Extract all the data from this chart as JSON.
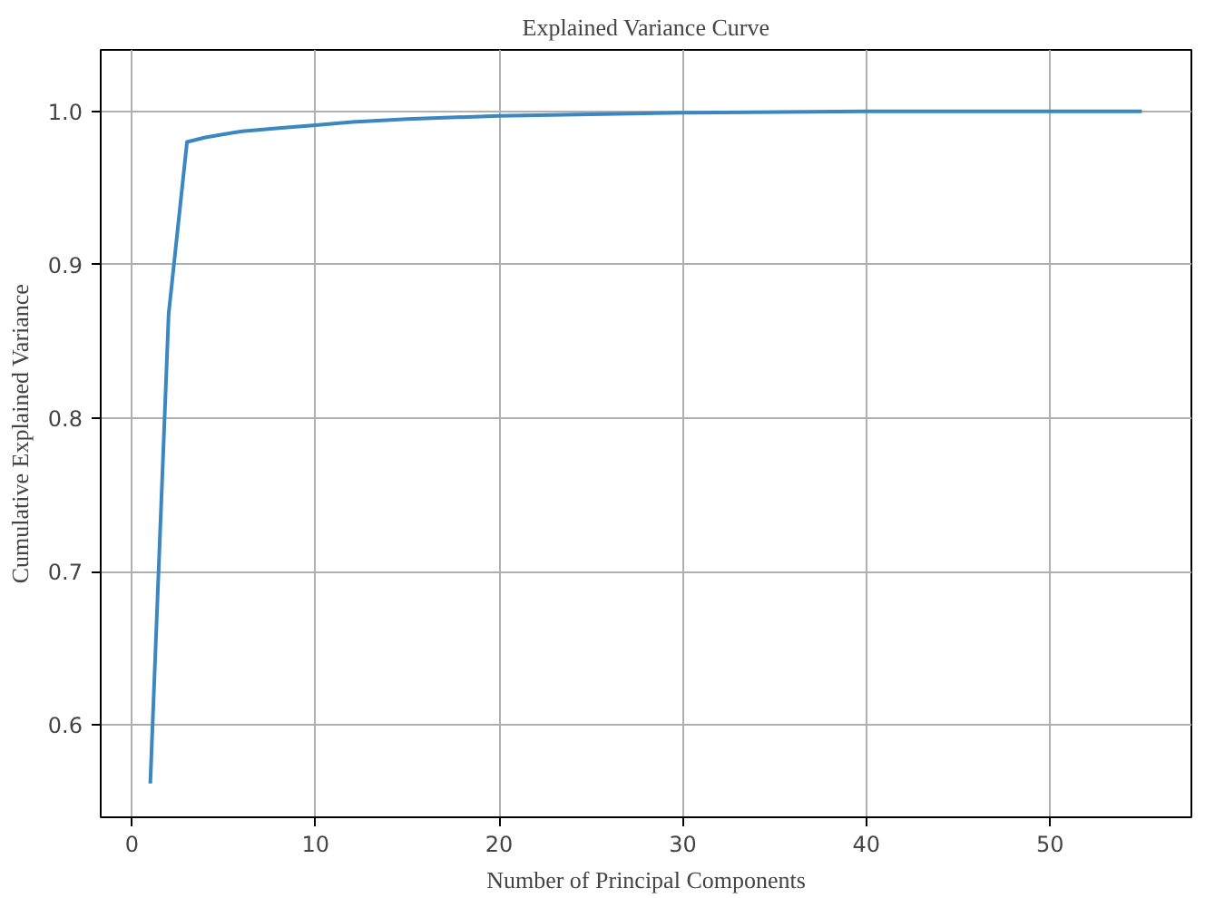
{
  "chart_data": {
    "type": "line",
    "title": "Explained Variance Curve",
    "xlabel": "Number of Principal Components",
    "ylabel": "Cumulative Explained Variance",
    "x": [
      1,
      2,
      3,
      4,
      5,
      6,
      8,
      10,
      12,
      15,
      20,
      25,
      30,
      40,
      50,
      55
    ],
    "series": [
      {
        "color": "#3a87c2",
        "values": [
          0.562,
          0.868,
          0.98,
          0.983,
          0.985,
          0.987,
          0.989,
          0.991,
          0.993,
          0.995,
          0.997,
          0.998,
          0.999,
          1.0,
          1.0,
          1.0
        ]
      }
    ],
    "xlim": [
      -1.7,
      57.7
    ],
    "ylim": [
      0.54,
      1.04
    ],
    "xticks": [
      0,
      10,
      20,
      30,
      40,
      50
    ],
    "yticks": [
      {
        "value": 0.6,
        "label": "0.6"
      },
      {
        "value": 0.7,
        "label": "0.7"
      },
      {
        "value": 0.8,
        "label": "0.8"
      },
      {
        "value": 0.9,
        "label": "0.9"
      },
      {
        "value": 1.0,
        "label": "1.0"
      }
    ],
    "grid": true
  }
}
